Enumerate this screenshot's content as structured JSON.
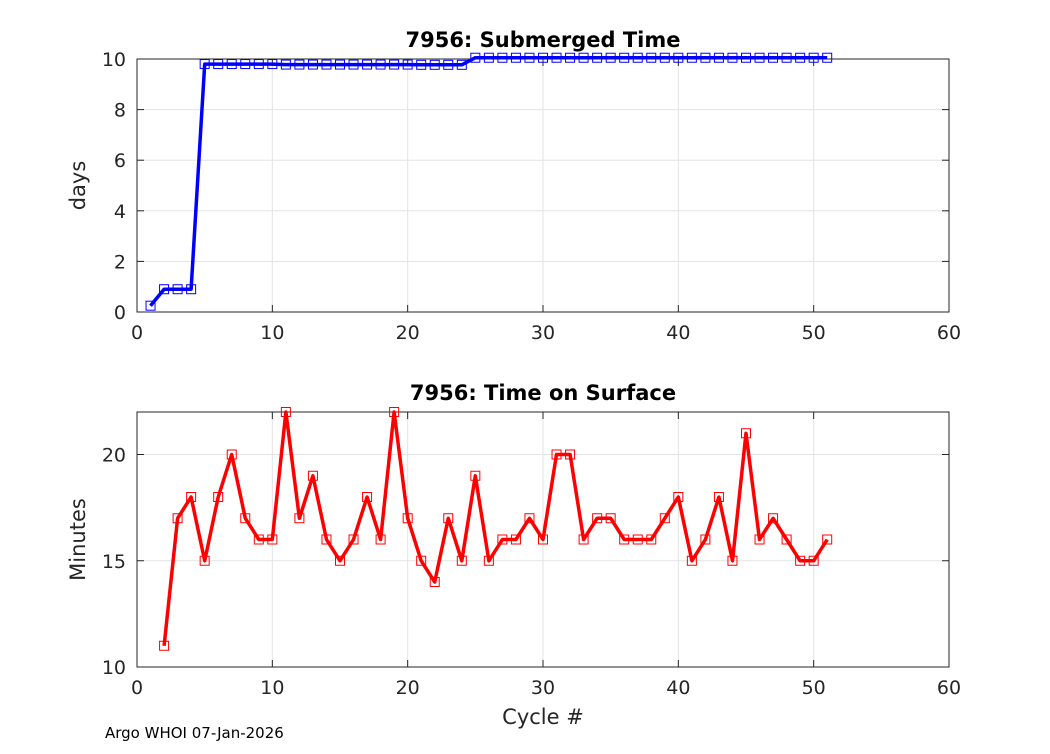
{
  "chart_data": [
    {
      "type": "line",
      "title": "7956: Submerged Time",
      "xlabel": "",
      "ylabel": "days",
      "xlim": [
        0,
        60
      ],
      "ylim": [
        0,
        10
      ],
      "xticks": [
        0,
        10,
        20,
        30,
        40,
        50,
        60
      ],
      "yticks": [
        0,
        2,
        4,
        6,
        8,
        10
      ],
      "grid": true,
      "series": [
        {
          "name": "submerged",
          "color": "#0000ff",
          "marker": "square",
          "x": [
            1,
            2,
            3,
            4,
            5,
            6,
            7,
            8,
            9,
            10,
            11,
            12,
            13,
            14,
            15,
            16,
            17,
            18,
            19,
            20,
            21,
            22,
            23,
            24,
            25,
            26,
            27,
            28,
            29,
            30,
            31,
            32,
            33,
            34,
            35,
            36,
            37,
            38,
            39,
            40,
            41,
            42,
            43,
            44,
            45,
            46,
            47,
            48,
            49,
            50,
            51
          ],
          "y": [
            0.25,
            0.9,
            0.9,
            0.9,
            9.8,
            9.8,
            9.8,
            9.8,
            9.8,
            9.8,
            9.78,
            9.78,
            9.78,
            9.78,
            9.78,
            9.78,
            9.78,
            9.78,
            9.78,
            9.78,
            9.77,
            9.77,
            9.77,
            9.77,
            10.05,
            10.05,
            10.05,
            10.05,
            10.05,
            10.05,
            10.05,
            10.05,
            10.05,
            10.05,
            10.05,
            10.05,
            10.05,
            10.05,
            10.05,
            10.05,
            10.05,
            10.05,
            10.05,
            10.05,
            10.05,
            10.05,
            10.05,
            10.05,
            10.05,
            10.05,
            10.05
          ]
        }
      ]
    },
    {
      "type": "line",
      "title": "7956: Time on Surface",
      "xlabel": "Cycle #",
      "ylabel": "Minutes",
      "xlim": [
        0,
        60
      ],
      "ylim": [
        10,
        22
      ],
      "xticks": [
        0,
        10,
        20,
        30,
        40,
        50,
        60
      ],
      "yticks": [
        10,
        15,
        20
      ],
      "grid": true,
      "series": [
        {
          "name": "surface",
          "color": "#ff0000",
          "marker": "square",
          "x": [
            2,
            3,
            4,
            5,
            6,
            7,
            8,
            9,
            10,
            11,
            12,
            13,
            14,
            15,
            16,
            17,
            18,
            19,
            20,
            21,
            22,
            23,
            24,
            25,
            26,
            27,
            28,
            29,
            30,
            31,
            32,
            33,
            34,
            35,
            36,
            37,
            38,
            39,
            40,
            41,
            42,
            43,
            44,
            45,
            46,
            47,
            48,
            49,
            50,
            51
          ],
          "y": [
            11,
            17,
            18,
            15,
            18,
            20,
            17,
            16,
            16,
            22,
            17,
            19,
            16,
            15,
            16,
            18,
            16,
            22,
            17,
            15,
            14,
            17,
            15,
            19,
            15,
            16,
            16,
            17,
            16,
            20,
            20,
            16,
            17,
            17,
            16,
            16,
            16,
            17,
            18,
            15,
            16,
            18,
            15,
            21,
            16,
            17,
            16,
            15,
            15,
            16
          ]
        }
      ]
    }
  ],
  "footer": "Argo WHOI 07-Jan-2026"
}
